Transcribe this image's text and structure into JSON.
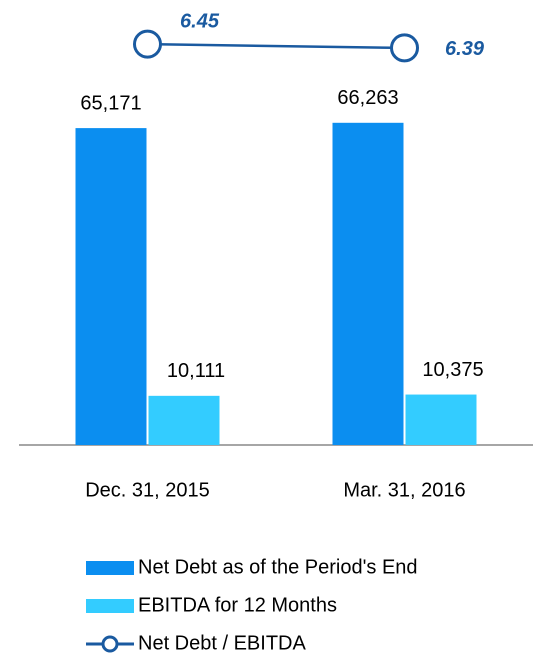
{
  "chart_data": {
    "type": "bar",
    "categories": [
      "Dec. 31, 2015",
      "Mar. 31, 2016"
    ],
    "series": [
      {
        "name": "Net Debt as of the Period's End",
        "color": "#0b8ef0",
        "values": [
          65171,
          66263
        ],
        "value_labels": [
          "65,171",
          "66,263"
        ]
      },
      {
        "name": "EBITDA for 12 Months",
        "color": "#33ccff",
        "values": [
          10111,
          10375
        ],
        "value_labels": [
          "10,111",
          "10,375"
        ]
      },
      {
        "name": "Net Debt / EBITDA",
        "color": "#1a5aa0",
        "type": "line",
        "axis": "y2",
        "values": [
          6.45,
          6.39
        ]
      }
    ],
    "ylim": [
      0,
      80000
    ],
    "y2lim": [
      0,
      7
    ],
    "grid": false
  }
}
